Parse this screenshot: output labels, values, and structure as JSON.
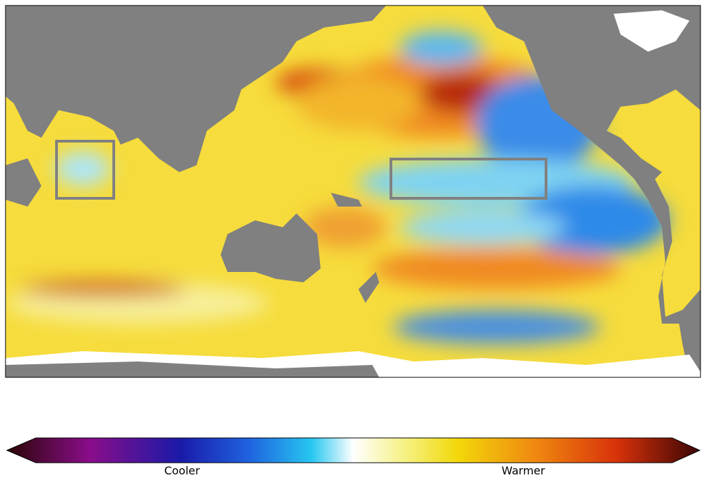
{
  "colorbar": {
    "low_label": "Cooler",
    "high_label": "Warmer"
  }
}
